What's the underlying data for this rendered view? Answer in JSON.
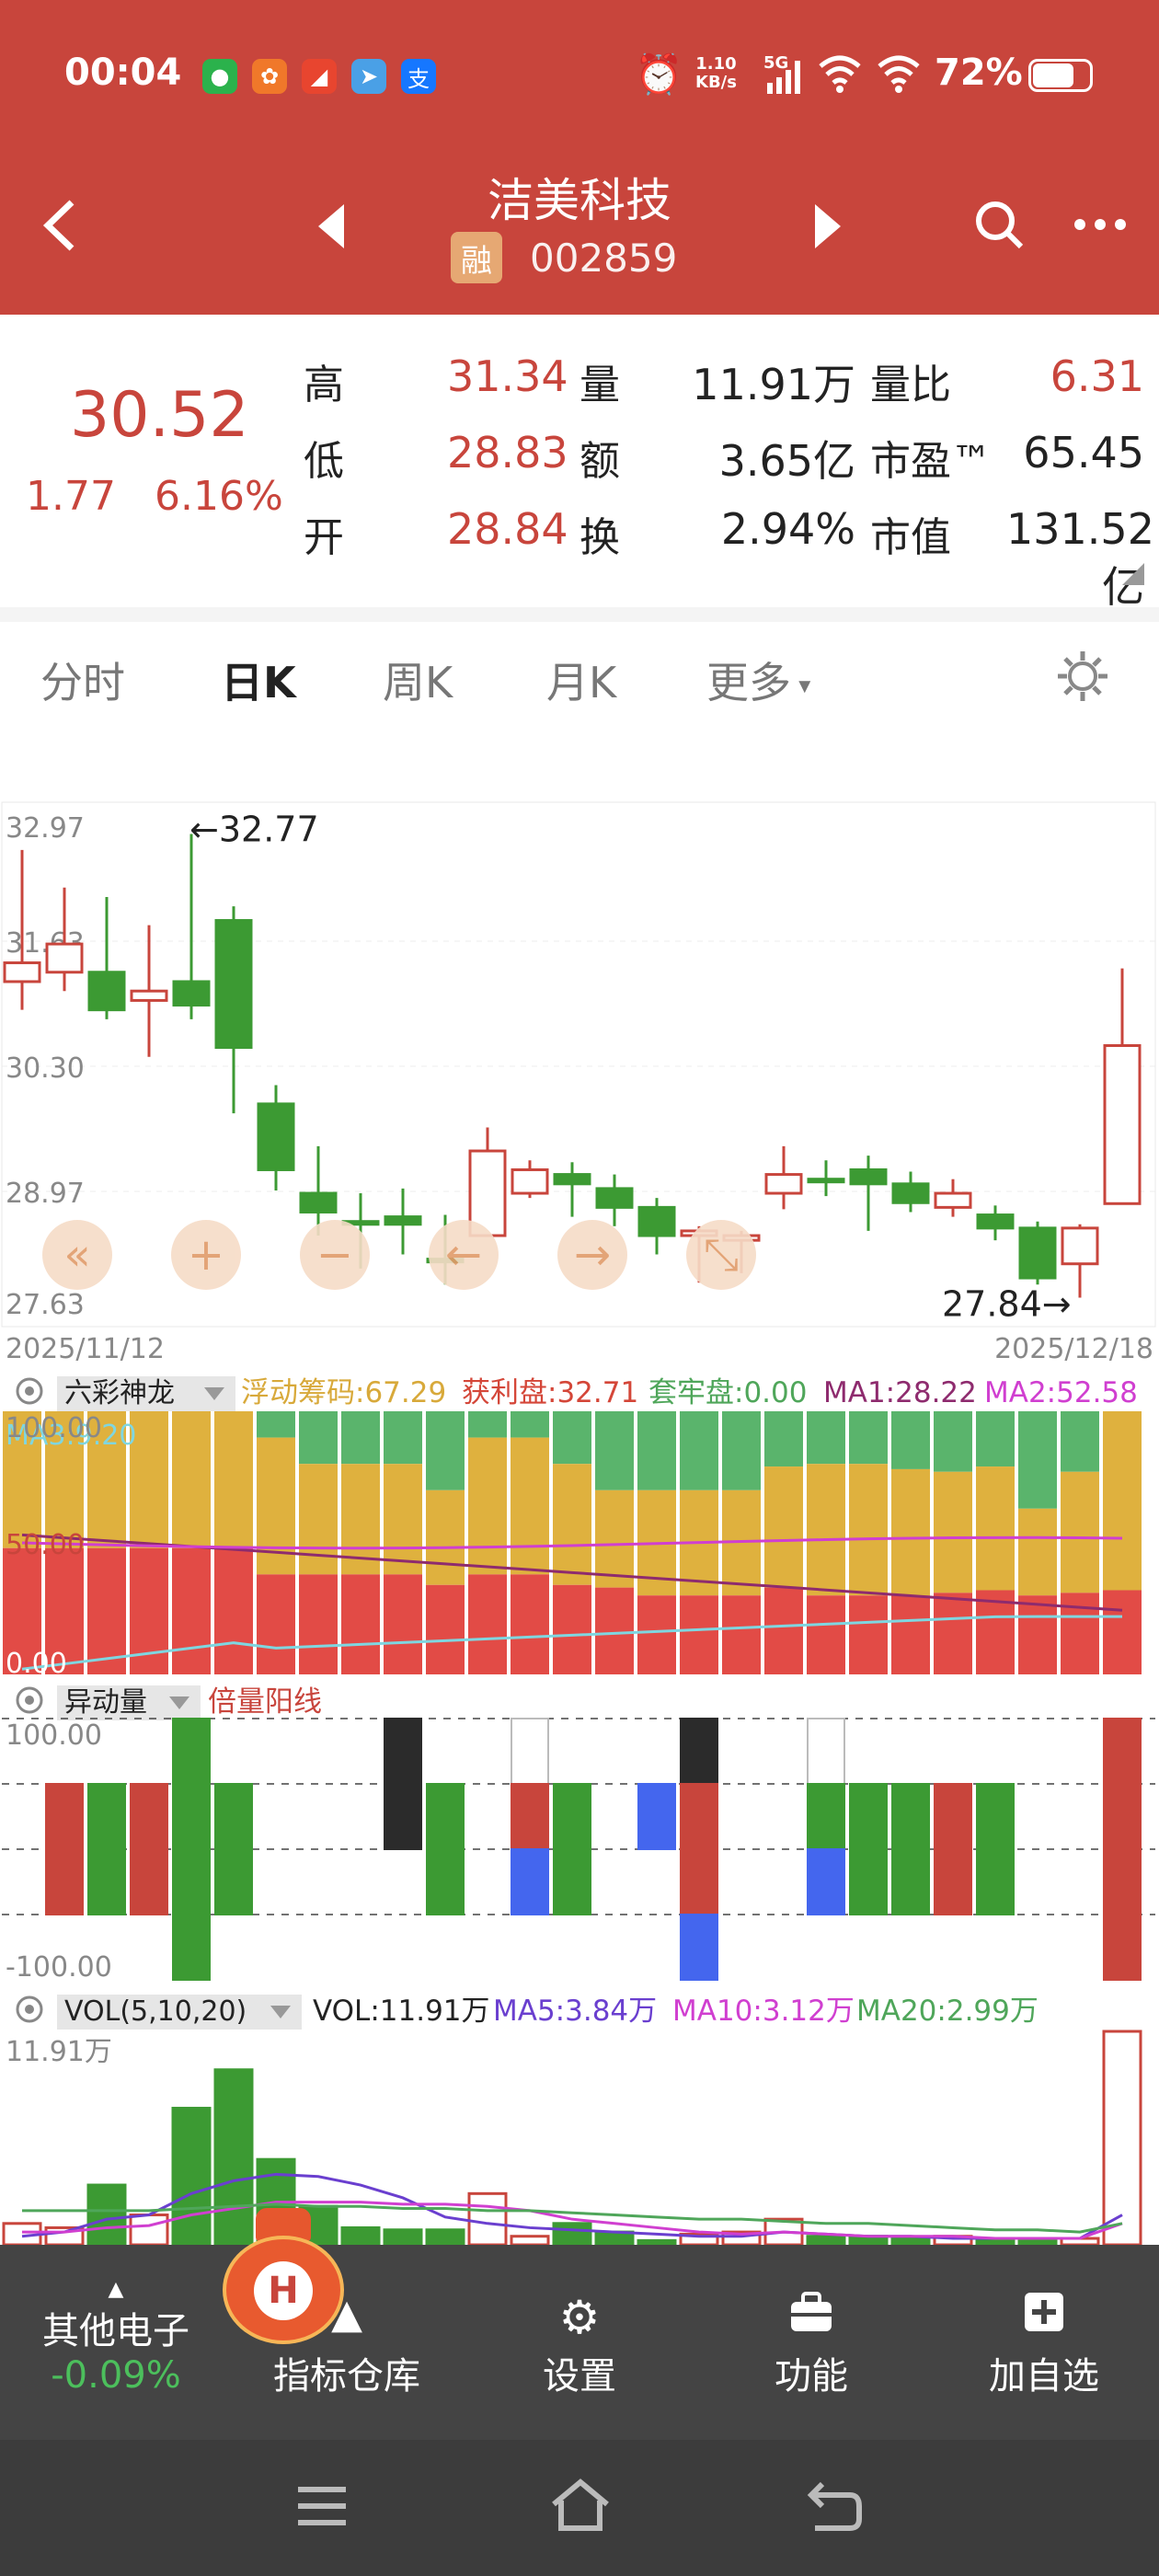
{
  "status": {
    "time": "00:04",
    "speed_top": "1.10",
    "speed_unit": "KB/s",
    "network": "5G",
    "battery": "72%"
  },
  "header": {
    "stock_name": "洁美科技",
    "margin_tag": "融",
    "stock_code": "002859"
  },
  "quote": {
    "price": "30.52",
    "change": "1.77",
    "change_pct": "6.16%",
    "rows": [
      {
        "l1": "高",
        "v1": "31.34",
        "l2": "量",
        "v2": "11.91万",
        "l3": "量比",
        "v3": "6.31"
      },
      {
        "l1": "低",
        "v1": "28.83",
        "l2": "额",
        "v2": "3.65亿",
        "l3": "市盈™",
        "v3": "65.45"
      },
      {
        "l1": "开",
        "v1": "28.84",
        "l2": "换",
        "v2": "2.94%",
        "l3": "市值",
        "v3": "131.52亿"
      }
    ]
  },
  "tabs": [
    {
      "label": "分时"
    },
    {
      "label": "日K"
    },
    {
      "label": "周K"
    },
    {
      "label": "月K"
    },
    {
      "label": "更多"
    }
  ],
  "chart_data": {
    "type": "candlestick",
    "y_ticks": [
      "32.97",
      "31.63",
      "30.30",
      "28.97",
      "27.63"
    ],
    "ylim": [
      27.63,
      32.97
    ],
    "high_mark": "32.77",
    "low_mark": "27.84",
    "start_date": "2025/11/12",
    "end_date": "2025/12/18",
    "candles": [
      {
        "o": 31.2,
        "c": 31.4,
        "h": 32.6,
        "l": 30.9
      },
      {
        "o": 31.3,
        "c": 31.6,
        "h": 32.2,
        "l": 31.1
      },
      {
        "o": 31.3,
        "c": 30.9,
        "h": 32.1,
        "l": 30.8
      },
      {
        "o": 31.0,
        "c": 31.1,
        "h": 31.8,
        "l": 30.4
      },
      {
        "o": 31.2,
        "c": 30.95,
        "h": 32.77,
        "l": 30.8
      },
      {
        "o": 31.85,
        "c": 30.5,
        "h": 32.0,
        "l": 29.8
      },
      {
        "o": 29.9,
        "c": 29.2,
        "h": 30.1,
        "l": 28.98
      },
      {
        "o": 28.95,
        "c": 28.75,
        "h": 29.45,
        "l": 28.5
      },
      {
        "o": 28.65,
        "c": 28.62,
        "h": 28.95,
        "l": 28.15
      },
      {
        "o": 28.7,
        "c": 28.62,
        "h": 29.0,
        "l": 28.3
      },
      {
        "o": 28.25,
        "c": 28.22,
        "h": 28.72,
        "l": 27.98
      },
      {
        "o": 28.5,
        "c": 29.4,
        "h": 29.65,
        "l": 28.5
      },
      {
        "o": 28.95,
        "c": 29.2,
        "h": 29.3,
        "l": 28.9
      },
      {
        "o": 29.15,
        "c": 29.05,
        "h": 29.28,
        "l": 28.7
      },
      {
        "o": 29.0,
        "c": 28.8,
        "h": 29.15,
        "l": 28.6
      },
      {
        "o": 28.8,
        "c": 28.5,
        "h": 28.9,
        "l": 28.3
      },
      {
        "o": 28.5,
        "c": 28.55,
        "h": 28.6,
        "l": 28.0
      },
      {
        "o": 28.45,
        "c": 28.5,
        "h": 28.55,
        "l": 28.1
      },
      {
        "o": 28.95,
        "c": 29.15,
        "h": 29.45,
        "l": 28.78
      },
      {
        "o": 29.1,
        "c": 29.08,
        "h": 29.3,
        "l": 28.92
      },
      {
        "o": 29.2,
        "c": 29.05,
        "h": 29.35,
        "l": 28.55
      },
      {
        "o": 29.05,
        "c": 28.85,
        "h": 29.18,
        "l": 28.75
      },
      {
        "o": 28.8,
        "c": 28.95,
        "h": 29.1,
        "l": 28.7
      },
      {
        "o": 28.72,
        "c": 28.58,
        "h": 28.82,
        "l": 28.45
      },
      {
        "o": 28.58,
        "c": 28.05,
        "h": 28.65,
        "l": 27.98
      },
      {
        "o": 28.2,
        "c": 28.58,
        "h": 28.62,
        "l": 27.84
      },
      {
        "o": 28.84,
        "c": 30.52,
        "h": 31.34,
        "l": 28.83
      }
    ]
  },
  "controls": [
    "«",
    "+",
    "−",
    "←",
    "→",
    "⤡"
  ],
  "ind1": {
    "name": "六彩神龙",
    "legend": [
      {
        "text": "浮动筹码:67.29",
        "color": "#d8a93a"
      },
      {
        "text": "获利盘:32.71",
        "color": "#d44638"
      },
      {
        "text": "套牢盘:0.00",
        "color": "#4fa65a"
      },
      {
        "text": "MA1:28.22",
        "color": "#8e2b6e"
      },
      {
        "text": "MA2:52.58",
        "color": "#d03fd0"
      }
    ],
    "overlay_label": "MA3:9.20",
    "y_ticks": [
      "100.00",
      "50.00",
      "0.00"
    ]
  },
  "ind2": {
    "name": "异动量",
    "legend": [
      {
        "text": "倍量阳线",
        "color": "#c8453c"
      }
    ],
    "y_ticks": [
      "100.00",
      "-100.00"
    ]
  },
  "vol": {
    "name": "VOL(5,10,20)",
    "legend": [
      {
        "text": "VOL:11.91万",
        "color": "#222"
      },
      {
        "text": "MA5:3.84万",
        "color": "#6a3fcf"
      },
      {
        "text": "MA10:3.12万",
        "color": "#d03fd0"
      },
      {
        "text": "MA20:2.99万",
        "color": "#4fa65a"
      }
    ],
    "top_label": "11.91万"
  },
  "bottom": {
    "sector_name": "其他电子",
    "sector_change": "-0.09%",
    "items": [
      {
        "label": "指标仓库"
      },
      {
        "label": "设置"
      },
      {
        "label": "功能"
      },
      {
        "label": "加自选"
      }
    ]
  },
  "colors": {
    "red": "#c8453c",
    "green": "#3c9a33",
    "header": "#c8453c"
  }
}
